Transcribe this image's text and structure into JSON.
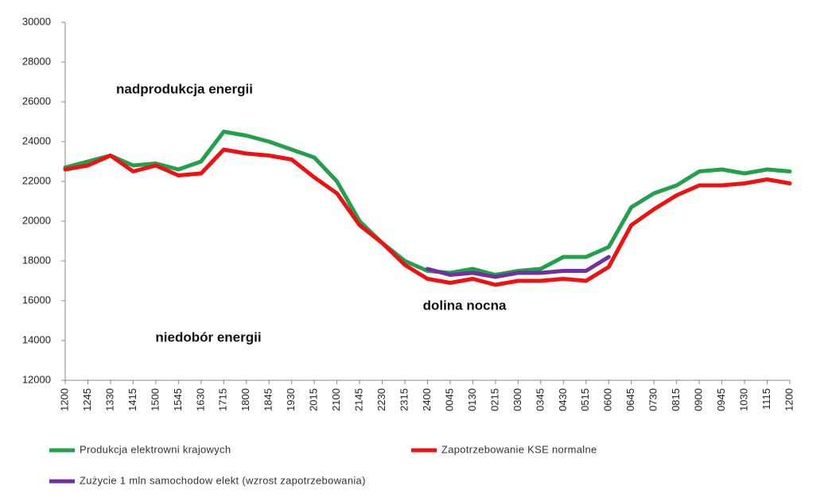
{
  "chart_data": {
    "type": "line",
    "categories": [
      "1200",
      "1245",
      "1330",
      "1415",
      "1500",
      "1545",
      "1630",
      "1715",
      "1800",
      "1845",
      "1930",
      "2015",
      "2100",
      "2145",
      "2230",
      "2315",
      "2400",
      "0045",
      "0130",
      "0215",
      "0300",
      "0345",
      "0430",
      "0515",
      "0600",
      "0645",
      "0730",
      "0815",
      "0900",
      "0945",
      "1030",
      "1115",
      "1200"
    ],
    "series": [
      {
        "name": "Produkcja elektrowni krajowych",
        "color": "#22a04b",
        "values": [
          22700,
          23000,
          23300,
          22800,
          22900,
          22600,
          23000,
          24500,
          24300,
          24000,
          23600,
          23200,
          22000,
          20000,
          18900,
          18000,
          17500,
          17400,
          17600,
          17300,
          17500,
          17600,
          18200,
          18200,
          18700,
          20700,
          21400,
          21800,
          22500,
          22600,
          22400,
          22600,
          22500
        ]
      },
      {
        "name": "Zapotrzebowanie KSE normalne",
        "color": "#ee1111",
        "values": [
          22600,
          22800,
          23300,
          22500,
          22800,
          22300,
          22400,
          23600,
          23400,
          23300,
          23100,
          22200,
          21400,
          19800,
          18900,
          17800,
          17100,
          16900,
          17100,
          16800,
          17000,
          17000,
          17100,
          17000,
          17700,
          19800,
          20600,
          21300,
          21800,
          21800,
          21900,
          22100,
          21900
        ]
      },
      {
        "name": "Zużycie 1 mln samochodow elekt (wzrost zapotrzebowania)",
        "color": "#7030a0",
        "values": [
          null,
          null,
          null,
          null,
          null,
          null,
          null,
          null,
          null,
          null,
          null,
          null,
          null,
          null,
          null,
          null,
          17600,
          17300,
          17400,
          17200,
          17400,
          17400,
          17500,
          17500,
          18200,
          null,
          null,
          null,
          null,
          null,
          null,
          null,
          null
        ]
      }
    ],
    "annotations": [
      "nadprodukcja energii",
      "niedobór energii",
      "dolina nocna"
    ],
    "ylim": [
      12000,
      30000
    ],
    "yticks": [
      12000,
      14000,
      16000,
      18000,
      20000,
      22000,
      24000,
      26000,
      28000,
      30000
    ],
    "grid": false,
    "legend": "bottom"
  }
}
